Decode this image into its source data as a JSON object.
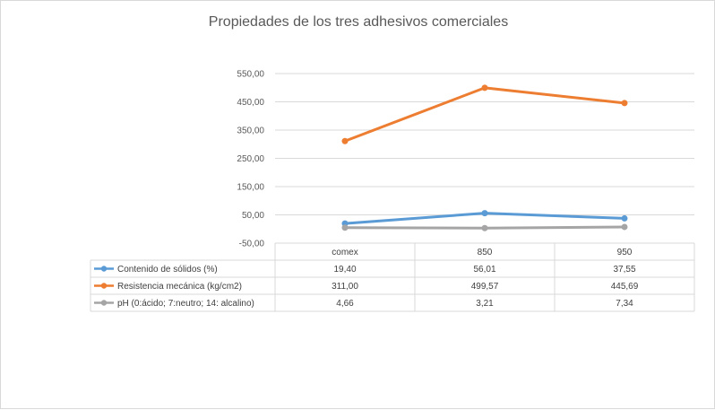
{
  "chart_data": {
    "type": "line",
    "title": "Propiedades de los tres adhesivos comerciales",
    "categories": [
      "comex",
      "850",
      "950"
    ],
    "ylim": [
      -50,
      550
    ],
    "ytick_values": [
      -50,
      50,
      150,
      250,
      350,
      450,
      550
    ],
    "ytick_labels": [
      "-50,00",
      "50,00",
      "150,00",
      "250,00",
      "350,00",
      "450,00",
      "550,00"
    ],
    "grid": true,
    "legend": "data-table",
    "series": [
      {
        "name": "Contenido de sólidos (%)",
        "color": "#5b9bd5",
        "values": [
          19.4,
          56.01,
          37.55
        ],
        "labels": [
          "19,40",
          "56,01",
          "37,55"
        ]
      },
      {
        "name": "Resistencia mecánica (kg/cm2)",
        "color": "#ed7d31",
        "values": [
          311.0,
          499.57,
          445.69
        ],
        "labels": [
          "311,00",
          "499,57",
          "445,69"
        ]
      },
      {
        "name": "pH (0:ácido; 7:neutro; 14: alcalino)",
        "color": "#a5a5a5",
        "values": [
          4.66,
          3.21,
          7.34
        ],
        "labels": [
          "4,66",
          "3,21",
          "7,34"
        ]
      }
    ]
  }
}
